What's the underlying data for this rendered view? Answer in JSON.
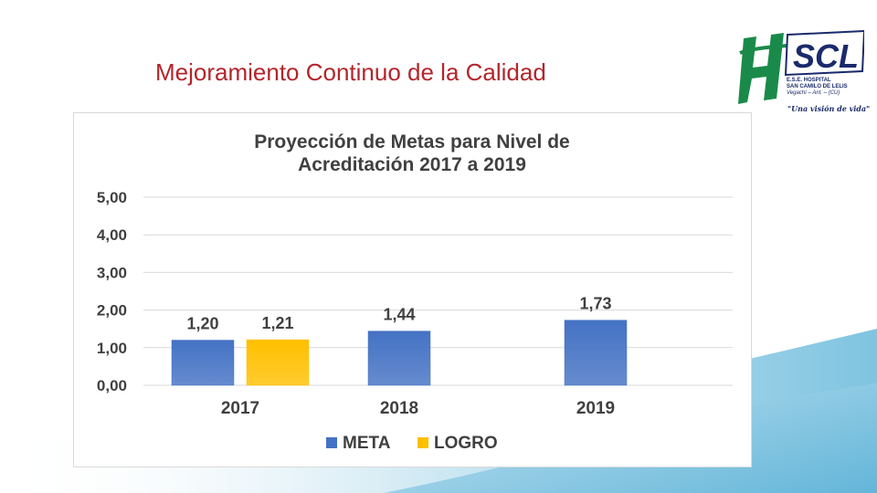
{
  "slide": {
    "title": "Mejoramiento Continuo de la Calidad",
    "accent_color": "#b3252b"
  },
  "logo": {
    "brand": "SCL",
    "line1": "E.S.E. HOSPITAL",
    "line2": "SAN CAMILO DE LELIS",
    "line3": "Vegachí – Ant. – (CU)",
    "slogan": "\"Una visión de vida\""
  },
  "chart_data": {
    "type": "bar",
    "title_lines": [
      "Proyección de Metas para Nivel de",
      "Acreditación 2017 a 2019"
    ],
    "categories": [
      "2017",
      "2018",
      "2019"
    ],
    "ylim": [
      0,
      5
    ],
    "yticks": [
      "0,00",
      "1,00",
      "2,00",
      "3,00",
      "4,00",
      "5,00"
    ],
    "grid": true,
    "legend_position": "bottom",
    "series": [
      {
        "name": "META",
        "color": "#4472c4",
        "values": [
          1.2,
          1.44,
          1.73
        ],
        "labels": [
          "1,20",
          "1,44",
          "1,73"
        ]
      },
      {
        "name": "LOGRO",
        "color": "#ffc000",
        "values": [
          1.21,
          null,
          null
        ],
        "labels": [
          "1,21",
          null,
          null
        ]
      }
    ]
  }
}
